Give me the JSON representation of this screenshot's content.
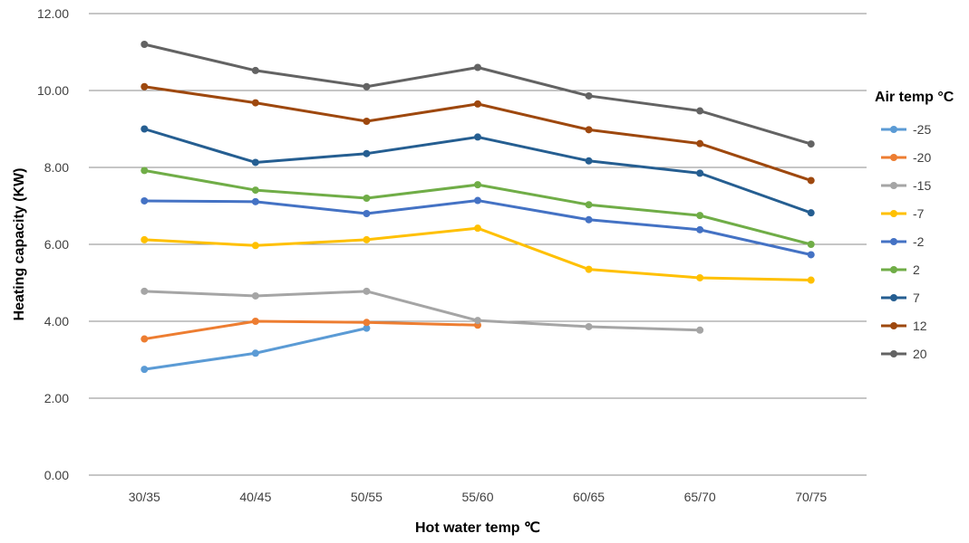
{
  "chart_data": {
    "type": "line",
    "title": "",
    "xlabel": "Hot water temp ℃",
    "ylabel": "Heating capacity (KW)",
    "legend_title": "Air temp °C",
    "legend_position": "right",
    "grid": true,
    "ylim": [
      0,
      12
    ],
    "yticks": [
      "0.00",
      "2.00",
      "4.00",
      "6.00",
      "8.00",
      "10.00",
      "12.00"
    ],
    "categories": [
      "30/35",
      "40/45",
      "50/55",
      "55/60",
      "60/65",
      "65/70",
      "70/75"
    ],
    "series": [
      {
        "name": "-25",
        "color": "#5b9bd5",
        "values": [
          2.75,
          3.17,
          3.82,
          null,
          null,
          null,
          null
        ]
      },
      {
        "name": "-20",
        "color": "#ed7d31",
        "values": [
          3.54,
          4.0,
          3.97,
          3.9,
          null,
          null,
          null
        ]
      },
      {
        "name": "-15",
        "color": "#a5a5a5",
        "values": [
          4.78,
          4.66,
          4.78,
          4.02,
          3.86,
          3.77,
          null
        ]
      },
      {
        "name": "-7",
        "color": "#ffc000",
        "values": [
          6.12,
          5.97,
          6.12,
          6.42,
          5.35,
          5.13,
          5.07
        ]
      },
      {
        "name": "-2",
        "color": "#4472c4",
        "values": [
          7.13,
          7.11,
          6.8,
          7.14,
          6.64,
          6.38,
          5.73
        ]
      },
      {
        "name": "2",
        "color": "#70ad47",
        "values": [
          7.92,
          7.41,
          7.2,
          7.55,
          7.03,
          6.75,
          6.0
        ]
      },
      {
        "name": "7",
        "color": "#255e91",
        "values": [
          9.0,
          8.13,
          8.36,
          8.79,
          8.17,
          7.85,
          6.82
        ]
      },
      {
        "name": "12",
        "color": "#9e480e",
        "values": [
          10.1,
          9.68,
          9.2,
          9.65,
          8.98,
          8.62,
          7.66
        ]
      },
      {
        "name": "20",
        "color": "#636363",
        "values": [
          11.2,
          10.52,
          10.1,
          10.6,
          9.86,
          9.47,
          8.61
        ]
      }
    ]
  }
}
